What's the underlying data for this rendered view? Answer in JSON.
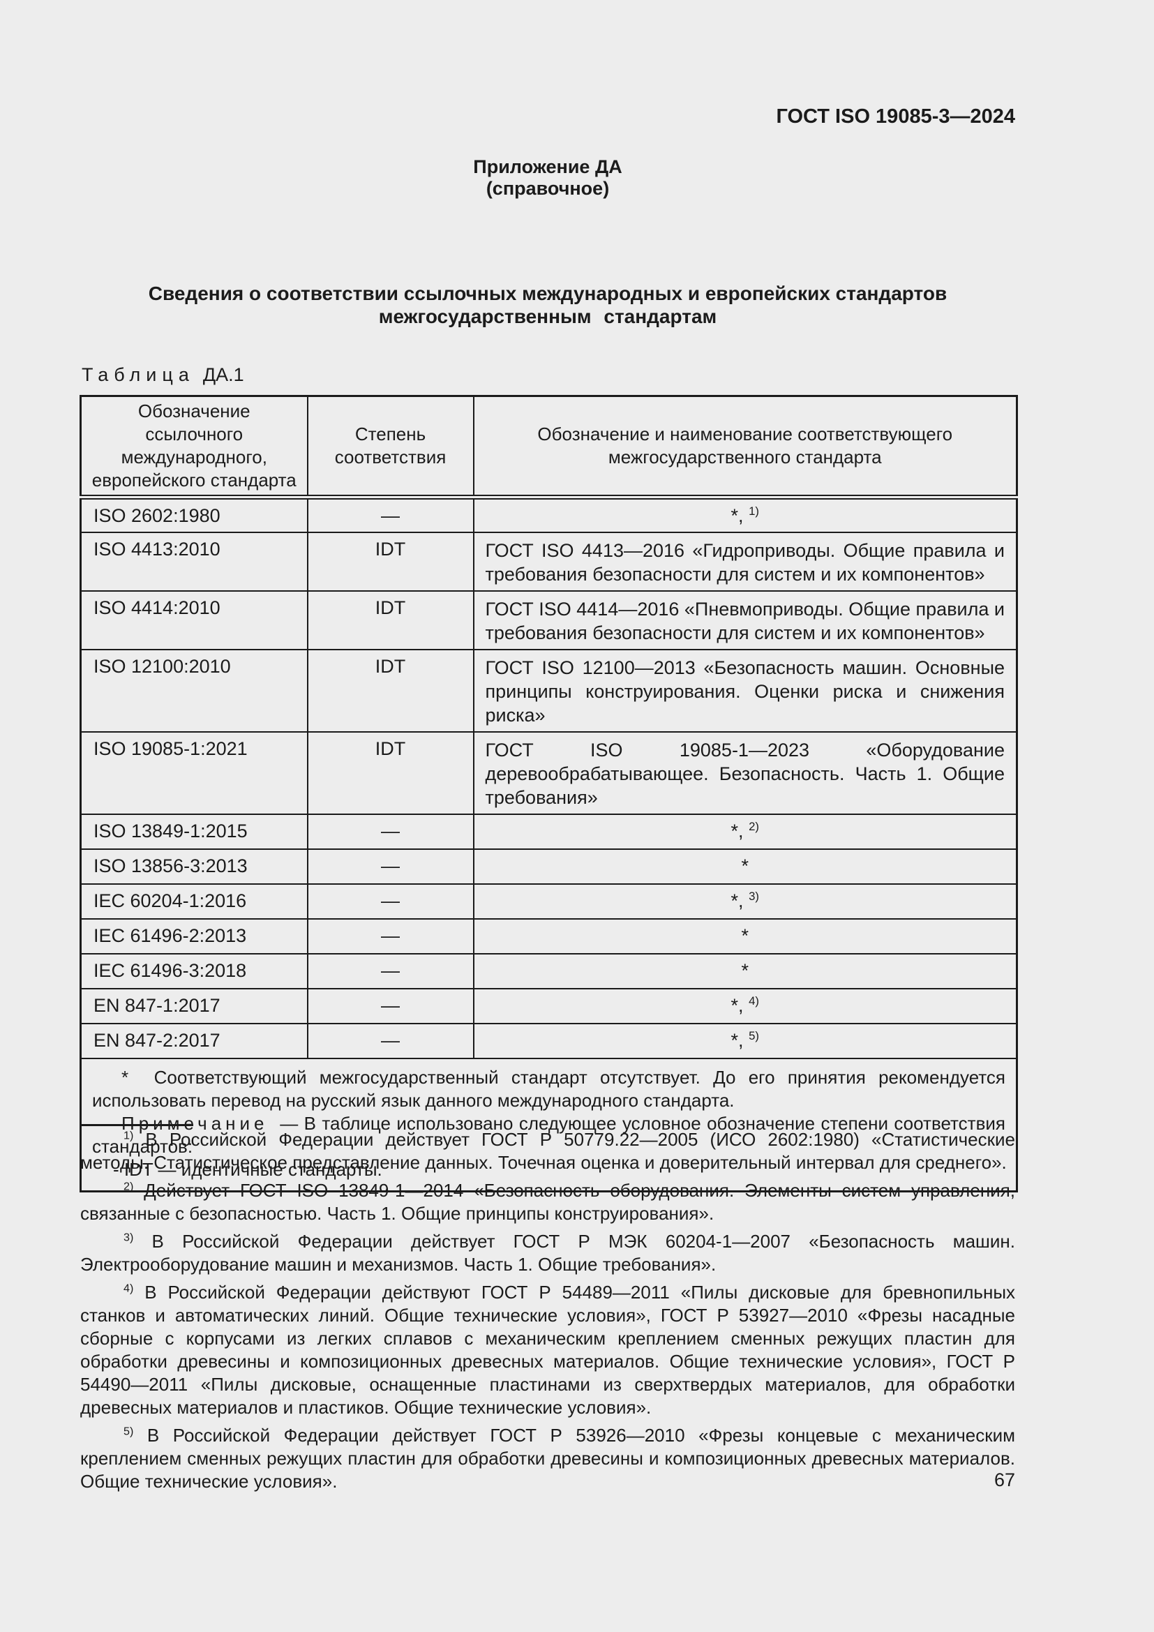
{
  "page": {
    "doc_number": "ГОСТ ISO 19085-3—2024",
    "appendix_label": "Приложение ДА",
    "appendix_kind": "(справочное)",
    "title_line1": "Сведения о соответствии ссылочных международных и европейских стандартов",
    "title_line2": "межгосударственным стандартам",
    "page_number": "67"
  },
  "table": {
    "label_word": "Таблица",
    "label_number": "ДА.1",
    "columns": [
      "Обозначение ссылочного\nмеждународного,\nевропейского стандарта",
      "Степень\nсоответствия",
      "Обозначение и наименование соответствующего\nмежгосударственного стандарта"
    ],
    "rows": [
      {
        "ref": "ISO 2602:1980",
        "degree": "—",
        "mark": "*,",
        "mark_sup": "1)"
      },
      {
        "ref": "ISO 4413:2010",
        "degree": "IDT",
        "text": "ГОСТ ISO 4413—2016 «Гидроприводы. Общие правила и требования безопасности для систем и их компонентов»"
      },
      {
        "ref": "ISO 4414:2010",
        "degree": "IDT",
        "text": "ГОСТ ISO 4414—2016 «Пневмоприводы. Общие правила и требования безопасности для систем и их компонентов»"
      },
      {
        "ref": "ISO 12100:2010",
        "degree": "IDT",
        "text": "ГОСТ ISO 12100—2013 «Безопасность машин. Основные принципы конструирования. Оценки риска и снижения риска»"
      },
      {
        "ref": "ISO 19085-1:2021",
        "degree": "IDT",
        "text": "ГОСТ ISO 19085-1—2023 «Оборудование деревообрабатывающее. Безопасность. Часть 1. Общие требования»"
      },
      {
        "ref": "ISO 13849-1:2015",
        "degree": "—",
        "mark": "*,",
        "mark_sup": "2)"
      },
      {
        "ref": "ISO 13856-3:2013",
        "degree": "—",
        "mark": "*",
        "mark_sup": ""
      },
      {
        "ref": "IEC 60204-1:2016",
        "degree": "—",
        "mark": "*,",
        "mark_sup": "3)"
      },
      {
        "ref": "IEC 61496-2:2013",
        "degree": "—",
        "mark": "*",
        "mark_sup": ""
      },
      {
        "ref": "IEC 61496-3:2018",
        "degree": "—",
        "mark": "*",
        "mark_sup": ""
      },
      {
        "ref": "EN 847-1:2017",
        "degree": "—",
        "mark": "*,",
        "mark_sup": "4)"
      },
      {
        "ref": "EN 847-2:2017",
        "degree": "—",
        "mark": "*,",
        "mark_sup": "5)"
      }
    ],
    "note": {
      "star_mark": "*",
      "star_text": "Соответствующий межгосударственный стандарт отсутствует. До его принятия рекомендуется использовать перевод на русский язык данного международного стандарта.",
      "note_label": "Примечание",
      "note_text": "— В таблице использовано следующее условное обозначение степени соответствия стандартов:",
      "idt_line": "- IDT — идентичные стандарты."
    }
  },
  "footnotes": [
    {
      "sup": "1)",
      "text": "В Российской Федерации действует ГОСТ Р 50779.22—2005 (ИСО 2602:1980) «Статистические методы. Статистическое представление данных. Точечная оценка и доверительный интервал для среднего»."
    },
    {
      "sup": "2)",
      "text": "Действует ГОСТ ISO 13849-1—2014 «Безопасность оборудования. Элементы систем управления, связанные с безопасностью. Часть 1. Общие принципы конструирования»."
    },
    {
      "sup": "3)",
      "text": "В Российской Федерации действует ГОСТ Р МЭК 60204-1—2007 «Безопасность машин. Электрооборудование машин и механизмов. Часть 1. Общие требования»."
    },
    {
      "sup": "4)",
      "text": "В Российской Федерации действуют ГОСТ Р 54489—2011 «Пилы дисковые для бревнопильных станков и автоматических линий. Общие технические условия», ГОСТ Р 53927—2010 «Фрезы насадные сборные с корпусами из легких сплавов с механическим креплением сменных режущих пластин для обработки древесины и композиционных древесных материалов. Общие технические условия», ГОСТ Р 54490—2011 «Пилы дисковые, оснащенные пластинами из сверхтвердых материалов, для обработки древесных материалов и пластиков. Общие технические условия»."
    },
    {
      "sup": "5)",
      "text": "В Российской Федерации действует ГОСТ Р 53926—2010 «Фрезы концевые с механическим креплением сменных режущих пластин для обработки древесины и композиционных древесных материалов. Общие технические условия»."
    }
  ]
}
